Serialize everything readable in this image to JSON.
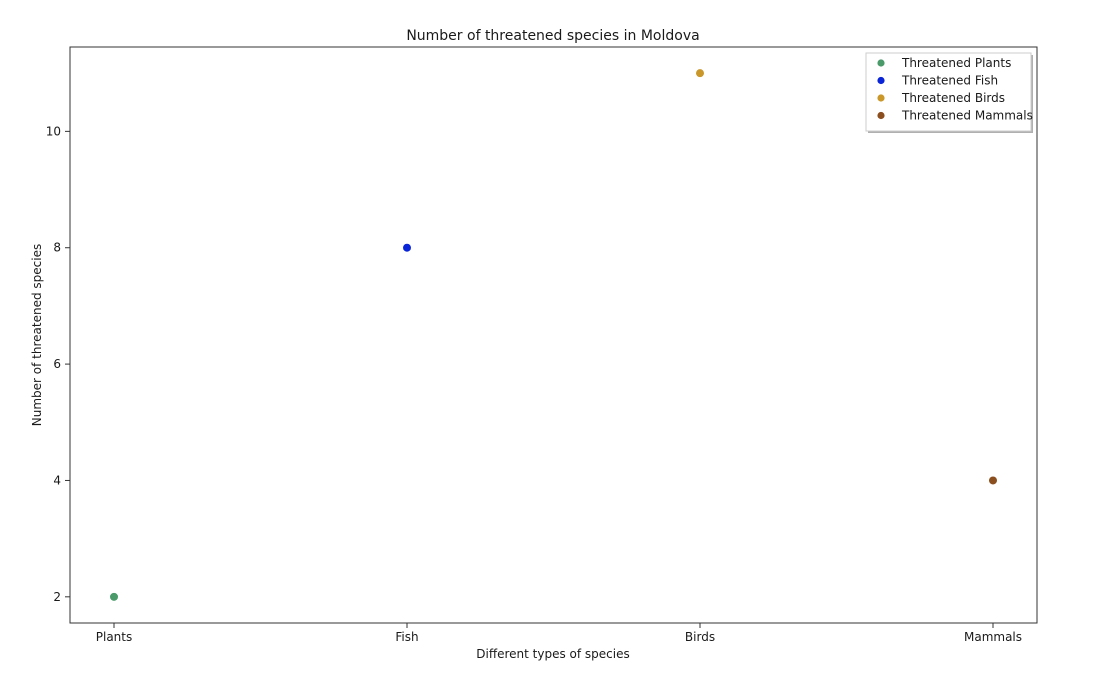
{
  "chart_data": {
    "type": "scatter",
    "title": "Number of threatened species in Moldova",
    "xlabel": "Different types of species",
    "ylabel": "Number of threatened species",
    "categories": [
      "Plants",
      "Fish",
      "Birds",
      "Mammals"
    ],
    "series": [
      {
        "name": "Threatened Plants",
        "x": "Plants",
        "y": 2,
        "color": "#4a9a6a"
      },
      {
        "name": "Threatened Fish",
        "x": "Fish",
        "y": 8,
        "color": "#0a24d8"
      },
      {
        "name": "Threatened Birds",
        "x": "Birds",
        "y": 11,
        "color": "#c9972a"
      },
      {
        "name": "Threatened Mammals",
        "x": "Mammals",
        "y": 4,
        "color": "#8b4f1f"
      }
    ],
    "yticks": [
      2,
      4,
      6,
      8,
      10
    ],
    "ylim": [
      1.55,
      11.45
    ],
    "grid": false,
    "legend_position": "top-right"
  }
}
